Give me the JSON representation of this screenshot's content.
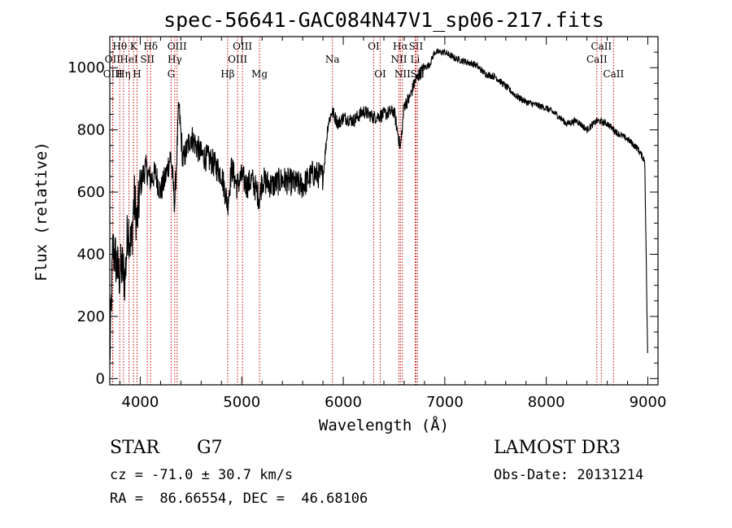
{
  "chart_data": {
    "type": "line",
    "title": "spec-56641-GAC084N47V1_sp06-217.fits",
    "xlabel": "Wavelength (Å)",
    "ylabel": "Flux (relative)",
    "xlim": [
      3700,
      9100
    ],
    "ylim": [
      -20,
      1100
    ],
    "xticks": [
      4000,
      5000,
      6000,
      7000,
      8000,
      9000
    ],
    "yticks": [
      0,
      200,
      400,
      600,
      800,
      1000
    ],
    "grid": false,
    "series": [
      {
        "name": "flux",
        "x": [
          3700,
          3730,
          3760,
          3790,
          3820,
          3850,
          3880,
          3910,
          3940,
          3970,
          4000,
          4050,
          4100,
          4150,
          4200,
          4250,
          4300,
          4340,
          4380,
          4420,
          4500,
          4600,
          4700,
          4800,
          4861,
          4900,
          4950,
          5000,
          5050,
          5100,
          5175,
          5200,
          5300,
          5400,
          5500,
          5600,
          5700,
          5800,
          5850,
          5890,
          5950,
          6000,
          6100,
          6200,
          6300,
          6400,
          6500,
          6563,
          6600,
          6650,
          6700,
          6750,
          6800,
          6850,
          6900,
          7000,
          7100,
          7200,
          7300,
          7400,
          7500,
          7600,
          7700,
          7800,
          7900,
          8000,
          8100,
          8200,
          8300,
          8400,
          8500,
          8600,
          8700,
          8800,
          8900,
          8970,
          9000
        ],
        "y": [
          60,
          420,
          380,
          330,
          360,
          320,
          500,
          420,
          580,
          500,
          620,
          680,
          640,
          660,
          600,
          650,
          720,
          560,
          880,
          700,
          780,
          720,
          700,
          660,
          560,
          680,
          620,
          650,
          620,
          640,
          580,
          640,
          620,
          640,
          630,
          620,
          660,
          650,
          820,
          860,
          820,
          840,
          830,
          860,
          840,
          850,
          860,
          740,
          880,
          900,
          950,
          980,
          1000,
          1010,
          1050,
          1050,
          1030,
          1020,
          1010,
          980,
          970,
          940,
          910,
          890,
          880,
          870,
          850,
          820,
          830,
          800,
          830,
          820,
          790,
          770,
          740,
          700,
          30
        ]
      }
    ],
    "spectral_lines": [
      {
        "label": "Hθ",
        "wavelength": 3798,
        "row": 1
      },
      {
        "label": "OII",
        "wavelength": 3727,
        "row": 2
      },
      {
        "label": "OIII",
        "wavelength": 3730,
        "row": 3
      },
      {
        "label": "Hη",
        "wavelength": 3835,
        "row": 3
      },
      {
        "label": "HeI",
        "wavelength": 3889,
        "row": 2
      },
      {
        "label": "K",
        "wavelength": 3934,
        "row": 1
      },
      {
        "label": "H",
        "wavelength": 3968,
        "row": 3
      },
      {
        "label": "SII",
        "wavelength": 4070,
        "row": 2
      },
      {
        "label": "Hδ",
        "wavelength": 4102,
        "row": 1
      },
      {
        "label": "OIII",
        "wavelength": 4363,
        "row": 1
      },
      {
        "label": "Hγ",
        "wavelength": 4340,
        "row": 2
      },
      {
        "label": "G",
        "wavelength": 4305,
        "row": 3
      },
      {
        "label": "Hβ",
        "wavelength": 4861,
        "row": 3
      },
      {
        "label": "OIII",
        "wavelength": 5007,
        "row": 1
      },
      {
        "label": "OIII",
        "wavelength": 4959,
        "row": 2
      },
      {
        "label": "Mg",
        "wavelength": 5175,
        "row": 3
      },
      {
        "label": "Na",
        "wavelength": 5893,
        "row": 2
      },
      {
        "label": "OI",
        "wavelength": 6300,
        "row": 1
      },
      {
        "label": "OI",
        "wavelength": 6364,
        "row": 3
      },
      {
        "label": "Hα",
        "wavelength": 6563,
        "row": 1
      },
      {
        "label": "NII",
        "wavelength": 6548,
        "row": 2
      },
      {
        "label": "NII",
        "wavelength": 6583,
        "row": 3
      },
      {
        "label": "SII",
        "wavelength": 6716,
        "row": 1
      },
      {
        "label": "Li",
        "wavelength": 6708,
        "row": 2
      },
      {
        "label": "SII",
        "wavelength": 6731,
        "row": 3
      },
      {
        "label": "CaII",
        "wavelength": 8542,
        "row": 1
      },
      {
        "label": "CaII",
        "wavelength": 8498,
        "row": 2
      },
      {
        "label": "CaII",
        "wavelength": 8662,
        "row": 3
      }
    ],
    "line_marker_color": "#cc0000",
    "series_color": "#000000"
  },
  "info": {
    "object_class": "STAR",
    "subclass": "G7",
    "survey": "LAMOST DR3",
    "redshift_text": "cz = -71.0 ± 30.7 km/s",
    "obs_date": "Obs-Date: 20131214",
    "coords_text": "RA =  86.66554, DEC =  46.68106"
  }
}
